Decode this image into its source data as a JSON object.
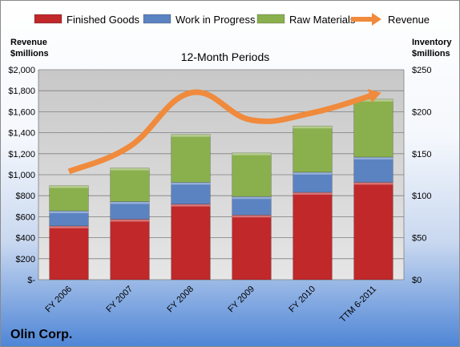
{
  "chart_data": {
    "type": "bar",
    "stacked": true,
    "subtitle": "12-Month Periods",
    "company": "Olin Corp.",
    "left_axis_title": [
      "Revenue",
      "$millions"
    ],
    "right_axis_title": [
      "Inventory",
      "$millions"
    ],
    "categories": [
      "FY 2006",
      "FY 2007",
      "FY 2008",
      "FY 2009",
      "FY 2010",
      "TTM 6-2011"
    ],
    "series": [
      {
        "name": "Finished Goods",
        "axis": "right",
        "color": "#c0282a",
        "values": [
          64,
          72,
          90,
          77,
          104,
          116
        ]
      },
      {
        "name": "Work in Progress",
        "axis": "right",
        "color": "#5b83c2",
        "values": [
          18,
          21,
          26,
          22,
          24,
          30
        ]
      },
      {
        "name": "Raw Materials",
        "axis": "right",
        "color": "#8ab04d",
        "values": [
          30,
          40,
          57,
          52,
          55,
          69
        ]
      },
      {
        "name": "Revenue",
        "axis": "left",
        "type": "line",
        "color": "#f08a3c",
        "values": [
          1030,
          1270,
          1780,
          1520,
          1590,
          1760
        ]
      }
    ],
    "left_axis": {
      "min": 0,
      "max": 2000,
      "step": 200,
      "tick_labels": [
        "$-",
        "$200",
        "$400",
        "$600",
        "$800",
        "$1,000",
        "$1,200",
        "$1,400",
        "$1,600",
        "$1,800",
        "$2,000"
      ]
    },
    "right_axis": {
      "min": 0,
      "max": 250,
      "step": 50,
      "tick_labels": [
        "$0",
        "$50",
        "$100",
        "$150",
        "$200",
        "$250"
      ]
    },
    "legend_position": "top"
  }
}
